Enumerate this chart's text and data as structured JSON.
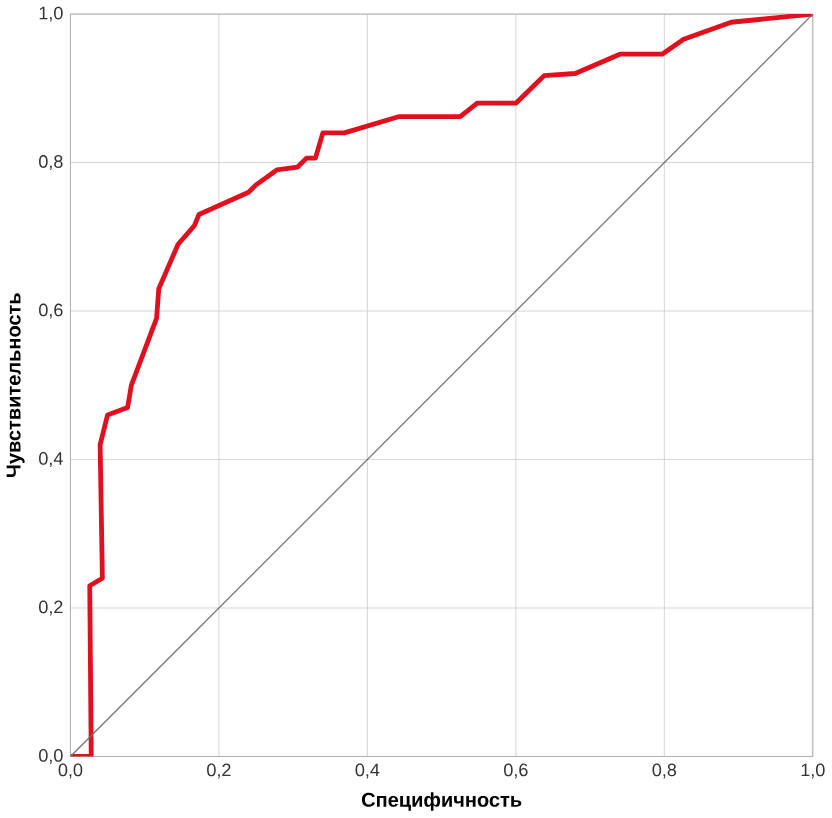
{
  "chart_data": {
    "type": "line",
    "xlabel": "Специфичность",
    "ylabel": "Чувствительность",
    "xlim": [
      0,
      1
    ],
    "ylim": [
      0,
      1
    ],
    "xticks": [
      {
        "value": 0,
        "label": "0,0"
      },
      {
        "value": 0.2,
        "label": "0,2"
      },
      {
        "value": 0.4,
        "label": "0,4"
      },
      {
        "value": 0.6,
        "label": "0,6"
      },
      {
        "value": 0.8,
        "label": "0,8"
      },
      {
        "value": 1,
        "label": "1,0"
      }
    ],
    "yticks": [
      {
        "value": 0,
        "label": "0,0"
      },
      {
        "value": 0.2,
        "label": "0,2"
      },
      {
        "value": 0.4,
        "label": "0,4"
      },
      {
        "value": 0.6,
        "label": "0,6"
      },
      {
        "value": 0.8,
        "label": "0,8"
      },
      {
        "value": 1,
        "label": "1,0"
      }
    ],
    "grid": true,
    "marker": "none",
    "line_style": "solid",
    "series": [
      {
        "color": "#e0101e",
        "x": [
          0,
          0.028,
          0.026,
          0.043,
          0.04,
          0.05,
          0.077,
          0.082,
          0.116,
          0.119,
          0.145,
          0.167,
          0.173,
          0.24,
          0.25,
          0.278,
          0.306,
          0.318,
          0.33,
          0.34,
          0.369,
          0.443,
          0.525,
          0.548,
          0.6,
          0.638,
          0.68,
          0.74,
          0.797,
          0.826,
          0.89,
          1
        ],
        "values": [
          0,
          0,
          0.23,
          0.24,
          0.42,
          0.46,
          0.47,
          0.5,
          0.59,
          0.63,
          0.69,
          0.715,
          0.73,
          0.76,
          0.77,
          0.79,
          0.794,
          0.806,
          0.806,
          0.84,
          0.84,
          0.862,
          0.862,
          0.88,
          0.88,
          0.917,
          0.92,
          0.946,
          0.946,
          0.966,
          0.989,
          1
        ]
      },
      {
        "color": "#707070",
        "x": [
          0,
          1
        ],
        "values": [
          0,
          1
        ]
      }
    ]
  }
}
